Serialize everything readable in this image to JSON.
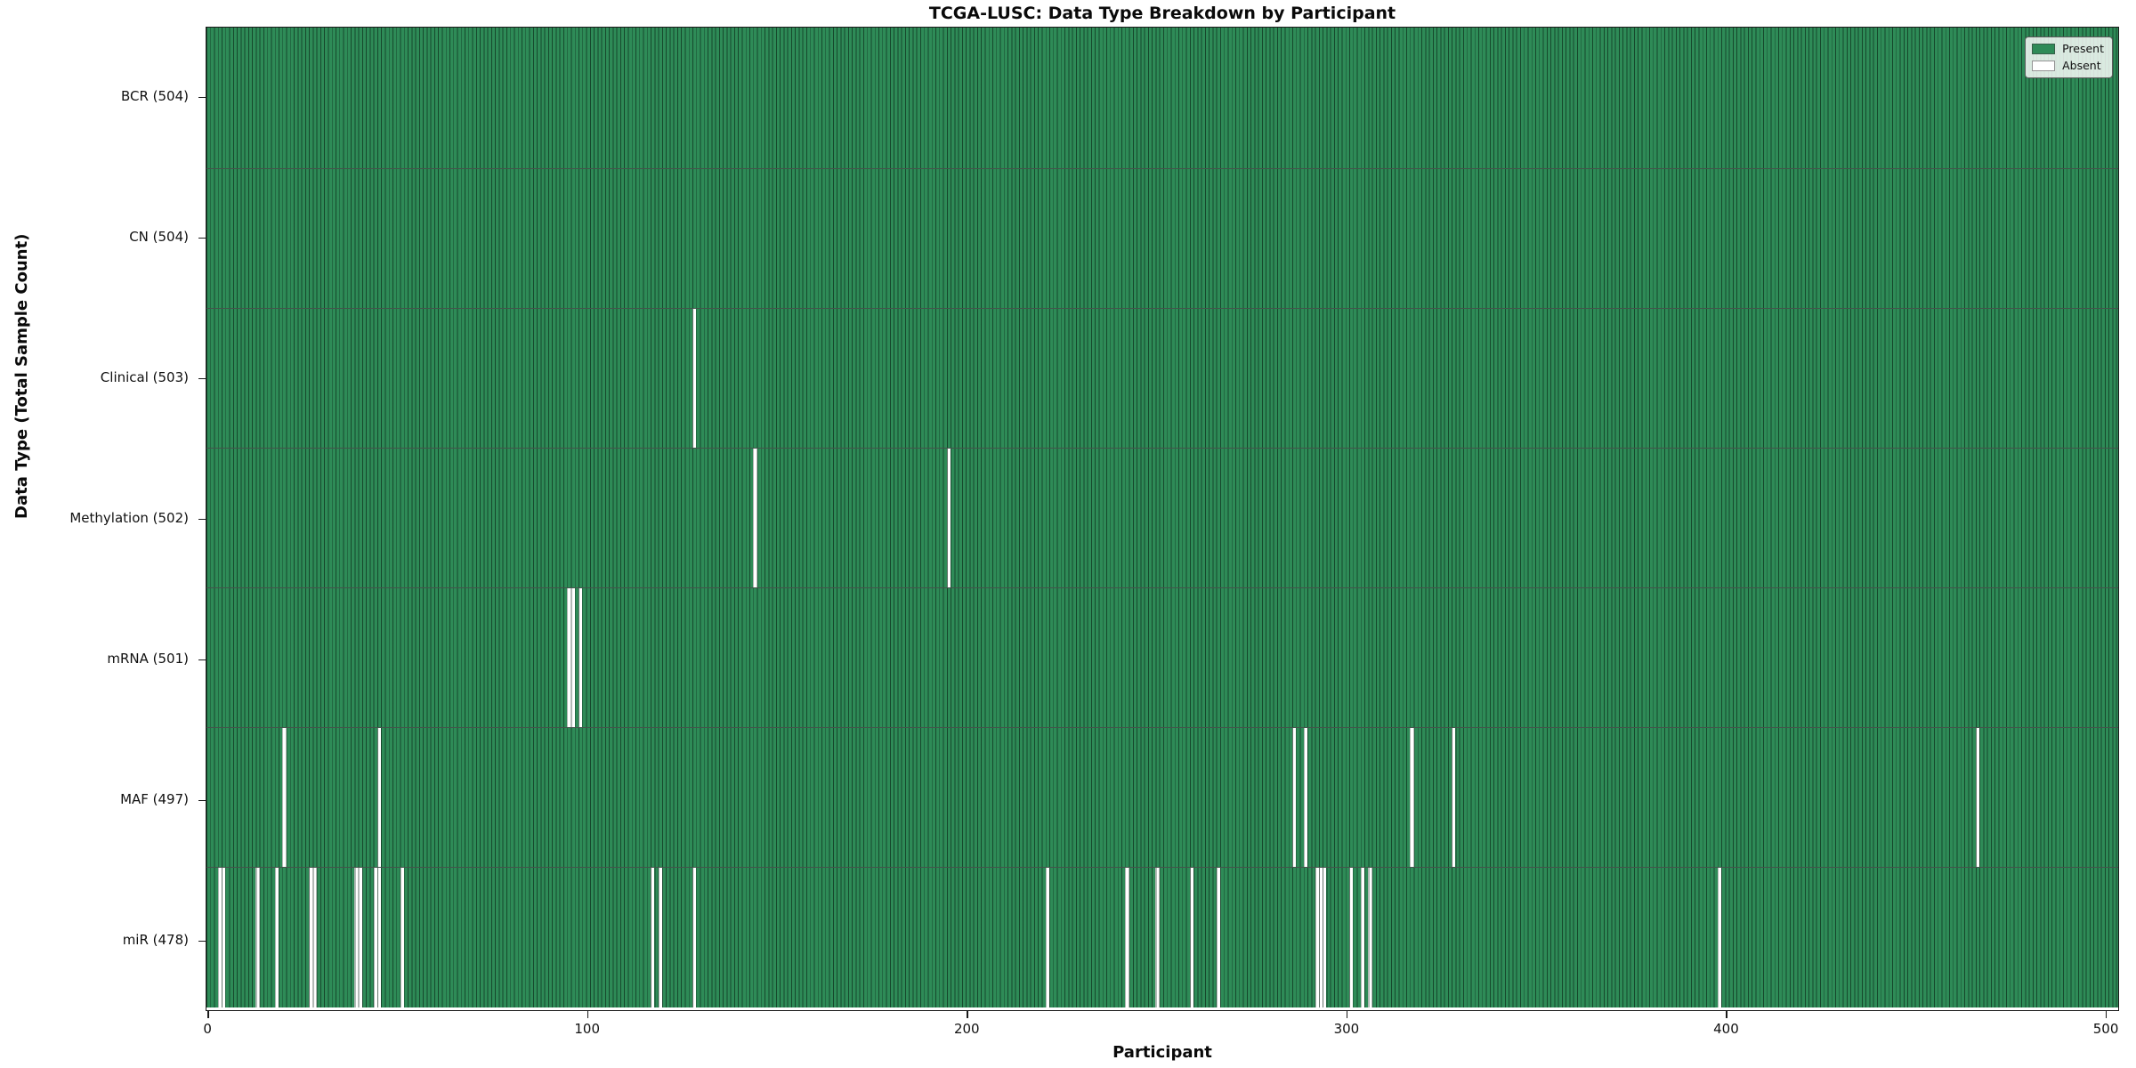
{
  "chart_data": {
    "type": "heatmap",
    "title": "TCGA-LUSC: Data Type Breakdown by Participant",
    "xlabel": "Participant",
    "ylabel": "Data Type (Total Sample Count)",
    "x_ticks": [
      0,
      100,
      200,
      300,
      400,
      500
    ],
    "x_range": [
      -0.5,
      503.5
    ],
    "n_participants": 504,
    "grid": false,
    "legend": {
      "position": "upper right",
      "entries": [
        {
          "label": "Present",
          "color": "#2e8b57"
        },
        {
          "label": "Absent",
          "color": "#ffffff"
        }
      ]
    },
    "colors": {
      "present": "#2e8b57",
      "absent": "#ffffff",
      "bar_edge": "rgba(8,30,18,0.62)",
      "axis": "#1a1a1a"
    },
    "rows": [
      {
        "data_type": "BCR",
        "label": "BCR (504)",
        "present_count": 504,
        "absent_participants": []
      },
      {
        "data_type": "CN",
        "label": "CN (504)",
        "present_count": 504,
        "absent_participants": []
      },
      {
        "data_type": "Clinical",
        "label": "Clinical (503)",
        "present_count": 503,
        "absent_participants": [
          128
        ]
      },
      {
        "data_type": "Methylation",
        "label": "Methylation (502)",
        "present_count": 502,
        "absent_participants": [
          144,
          195
        ]
      },
      {
        "data_type": "mRNA",
        "label": "mRNA (501)",
        "present_count": 501,
        "absent_participants": [
          95,
          96,
          98
        ]
      },
      {
        "data_type": "MAF",
        "label": "MAF (497)",
        "present_count": 497,
        "absent_participants": [
          20,
          45,
          286,
          289,
          317,
          328,
          466
        ]
      },
      {
        "data_type": "miR",
        "label": "miR (478)",
        "present_count": 478,
        "absent_participants": [
          3,
          4,
          13,
          18,
          27,
          28,
          39,
          40,
          44,
          45,
          51,
          117,
          119,
          128,
          221,
          242,
          250,
          259,
          266,
          292,
          293,
          294,
          301,
          304,
          306,
          398
        ]
      }
    ]
  }
}
